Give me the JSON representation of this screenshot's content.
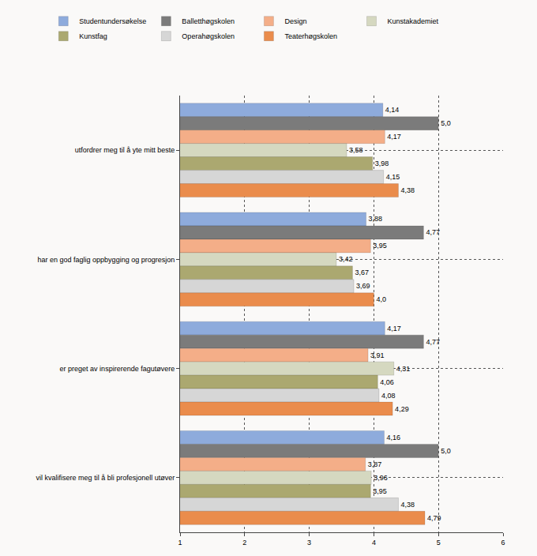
{
  "chart_data": {
    "type": "bar",
    "orientation": "horizontal",
    "categories": [
      "utfordrer meg til å yte mitt beste",
      "har en god faglig oppbygging og progresjon",
      "er preget av inspirerende fagutøvere",
      "vil kvalifisere meg til å bli profesjonell utøver"
    ],
    "series": [
      {
        "name": "Studentundersøkelse",
        "color": "#8eabdc",
        "values": [
          4.14,
          3.88,
          4.17,
          4.16
        ],
        "value_labels": [
          "4,14",
          "3,88",
          "4,17",
          "4,16"
        ]
      },
      {
        "name": "Balletthøgskolen",
        "color": "#7b7b7b",
        "values": [
          5.0,
          4.77,
          4.77,
          5.0
        ],
        "value_labels": [
          "5,0",
          "4,77",
          "4,77",
          "5,0"
        ]
      },
      {
        "name": "Design",
        "color": "#f4ae88",
        "values": [
          4.17,
          3.95,
          3.91,
          3.87
        ],
        "value_labels": [
          "4,17",
          "3,95",
          "3,91",
          "3,87"
        ]
      },
      {
        "name": "Kunstakademiet",
        "color": "#d5d8c0",
        "values": [
          3.58,
          3.42,
          4.31,
          3.96
        ],
        "value_labels": [
          "3,58",
          "3,42",
          "4,31",
          "3,96"
        ]
      },
      {
        "name": "Kunstfag",
        "color": "#aba870",
        "values": [
          3.98,
          3.67,
          4.06,
          3.95
        ],
        "value_labels": [
          "3,98",
          "3,67",
          "4,06",
          "3,95"
        ]
      },
      {
        "name": "Operahøgskolen",
        "color": "#d6d6d6",
        "values": [
          4.15,
          3.69,
          4.08,
          4.38
        ],
        "value_labels": [
          "4,15",
          "3,69",
          "4,08",
          "4,38"
        ]
      },
      {
        "name": "Teaterhøgskolen",
        "color": "#ea8c4c",
        "values": [
          4.38,
          4.0,
          4.29,
          4.79
        ],
        "value_labels": [
          "4,38",
          "4,0",
          "4,29",
          "4,79"
        ]
      }
    ],
    "xlim": [
      1,
      6
    ],
    "xticks": [
      1,
      2,
      3,
      4,
      5,
      6
    ],
    "grid": true,
    "legend": "top",
    "data_labels": true
  }
}
